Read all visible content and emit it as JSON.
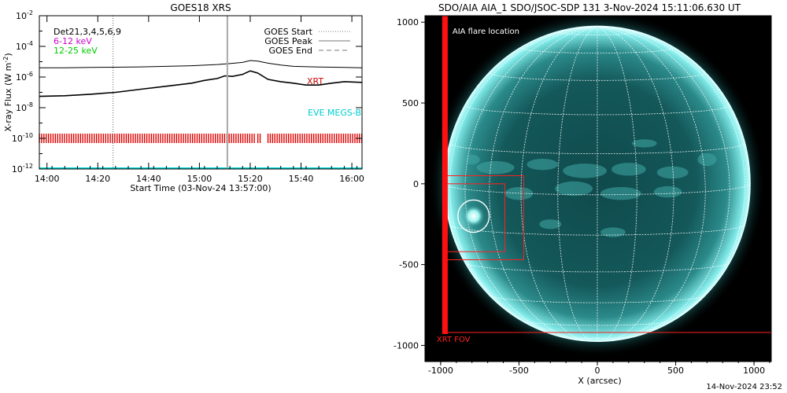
{
  "chart_data": [
    {
      "type": "line",
      "title": "GOES18 XRS",
      "xlabel": "Start Time (03-Nov-24 13:57:00)",
      "ylabel": "X-ray Flux (W m",
      "ylabel_sup": "-2",
      "ylabel_close": ")",
      "yscale": "log",
      "ylim": [
        1e-12,
        0.01
      ],
      "x_ticks": [
        "14:00",
        "14:20",
        "14:40",
        "15:00",
        "15:20",
        "15:40",
        "16:00"
      ],
      "x_tick_minutes": [
        3,
        23,
        43,
        63,
        83,
        103,
        123
      ],
      "xlim_minutes": [
        0,
        127
      ],
      "y_ticks": [
        {
          "base": "10",
          "exp": "-2",
          "value": 0.01
        },
        {
          "base": "10",
          "exp": "-4",
          "value": 0.0001
        },
        {
          "base": "10",
          "exp": "-6",
          "value": 1e-06
        },
        {
          "base": "10",
          "exp": "-8",
          "value": 1e-08
        },
        {
          "base": "10",
          "exp": "-10",
          "value": 1e-10
        },
        {
          "base": "10",
          "exp": "-12",
          "value": 1e-12
        }
      ],
      "legend_left": [
        {
          "label": "Det21,3,4,5,6,9",
          "color": "#000000"
        },
        {
          "label": "6-12 keV",
          "color": "#cc00cc"
        },
        {
          "label": "12-25 keV",
          "color": "#00cc00"
        }
      ],
      "legend_right": [
        {
          "label": "GOES Start",
          "style": "dotted"
        },
        {
          "label": "GOES Peak",
          "style": "solid"
        },
        {
          "label": "GOES End",
          "style": "dashed"
        }
      ],
      "annotations": [
        {
          "text": "XRT",
          "color": "#cc0000"
        },
        {
          "text": "EVE MEGS-B",
          "color": "#00cccc"
        }
      ],
      "goes_start_minute": 29,
      "current_time_minute": 74,
      "series": [
        {
          "color": "#000000",
          "x": [
            0,
            10,
            20,
            30,
            40,
            50,
            60,
            70,
            75,
            80,
            83,
            86,
            90,
            95,
            100,
            110,
            120,
            127
          ],
          "y": [
            4e-06,
            4e-06,
            4.2e-06,
            4.4e-06,
            4.6e-06,
            5e-06,
            5.5e-06,
            6.5e-06,
            7.5e-06,
            9e-06,
            1.2e-05,
            1.1e-05,
            8e-06,
            6e-06,
            5e-06,
            4.5e-06,
            4.2e-06,
            4e-06
          ]
        },
        {
          "color": "#000000",
          "x": [
            0,
            10,
            20,
            30,
            40,
            50,
            60,
            65,
            70,
            73,
            76,
            80,
            83,
            86,
            90,
            95,
            100,
            105,
            110,
            115,
            120,
            127
          ],
          "y": [
            5.5e-08,
            6e-08,
            7.5e-08,
            1e-07,
            1.6e-07,
            2.5e-07,
            4e-07,
            6e-07,
            8e-07,
            1.2e-06,
            1.1e-06,
            1.5e-06,
            2.5e-06,
            1.8e-06,
            7e-07,
            5e-07,
            4e-07,
            3e-07,
            3e-07,
            4e-07,
            5e-07,
            4.5e-07
          ]
        }
      ],
      "xrt_bar_segments_minutes": [
        [
          0,
          85
        ],
        [
          86,
          87
        ],
        [
          90,
          127
        ]
      ],
      "xrt_level": 1e-10,
      "eve_level": 1e-12
    },
    {
      "type": "scatter",
      "title": "SDO/AIA AIA_1 SDO/JSOC-SDP 131  3-Nov-2024 15:11:06.630 UT",
      "xlabel": "X (arcsec)",
      "ylabel": "",
      "xlim": [
        -1100,
        1110
      ],
      "ylim": [
        -1100,
        1040
      ],
      "x_ticks": [
        -1000,
        -500,
        0,
        500,
        1000
      ],
      "y_ticks": [
        1000,
        500,
        0,
        -500,
        -1000
      ],
      "labels": [
        {
          "text": "AIA flare location"
        },
        {
          "text": "XRT FOV"
        }
      ],
      "solar_radius_arcsec": 975,
      "flare_location": {
        "x": -790,
        "y": -200,
        "r": 100
      },
      "fov_outer_box": {
        "x0": -980,
        "x1": -470,
        "y0": -470,
        "y1": 50
      },
      "fov_inner_box": {
        "x0": -960,
        "x1": -590,
        "y0": -420,
        "y1": 0
      },
      "xrt_fov": {
        "x0": -975,
        "x1": 1110,
        "y0": -920,
        "y1": 1040
      }
    }
  ],
  "footer": {
    "timestamp": "14-Nov-2024 23:52"
  }
}
